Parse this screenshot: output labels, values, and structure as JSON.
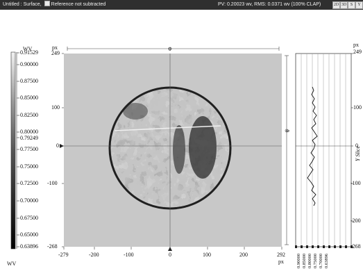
{
  "titlebar": {
    "left_text": "Untitled : Surface,",
    "reference_text": "Reference not subtracted",
    "stats_text": "PV: 0.20023 wv, RMS: 0.0371 wv (100% CLAP)",
    "buttons": [
      "2D",
      "3D",
      "S",
      "Y"
    ]
  },
  "colorbar": {
    "unit_top": "WV",
    "unit_bottom": "WV",
    "tick_labels": [
      "0.91529",
      "0.90000",
      "0.87500",
      "0.85000",
      "0.82500",
      "0.80000",
      "0.79249",
      "0.77500",
      "0.75000",
      "0.72500",
      "0.70000",
      "0.67500",
      "0.65000",
      "0.63896"
    ]
  },
  "main_plot": {
    "y_unit": "px",
    "x_unit": "px",
    "y_ticks": [
      "249",
      "100",
      "0",
      "-100",
      "-268"
    ],
    "x_ticks": [
      "-279",
      "-200",
      "-100",
      "0",
      "100",
      "200",
      "292"
    ],
    "y_axis_marker": "0",
    "top_cursor_label": "0",
    "right_cursor_label": "0"
  },
  "slice_plot": {
    "title": "Y Slice",
    "y_unit": "px",
    "y_ticks": [
      "249",
      "100",
      "0",
      "-100",
      "-200",
      "-268"
    ],
    "x_ticks": [
      "0.90000",
      "0.85000",
      "0.80000",
      "0.75000",
      "0.70000",
      "0.63896"
    ]
  },
  "colors": {
    "titlebar_bg": "#2f2f2f",
    "plot_bg": "#c8c8c8",
    "disc_edge": "#202020"
  }
}
